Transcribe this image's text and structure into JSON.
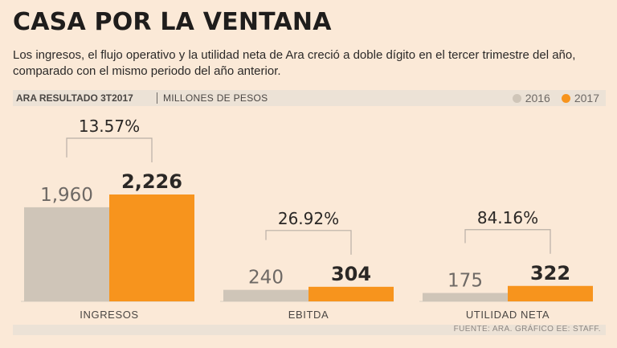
{
  "header": {
    "title": "CASA POR LA VENTANA",
    "subtitle": "Los ingresos, el flujo operativo y la utilidad neta de Ara creció a doble dígito en el tercer trimestre del año, comparado con el mismo periodo del año anterior."
  },
  "band": {
    "heading": "ARA RESULTADO 3T2017",
    "unit": "MILLONES DE PESOS"
  },
  "colors": {
    "series_2016": "#cfc5b8",
    "series_2017": "#f7941d",
    "background": "#fbe9d7"
  },
  "chart_data": {
    "type": "bar",
    "title": "ARA RESULTADO 3T2017",
    "ylabel": "MILLONES DE PESOS",
    "categories": [
      "INGRESOS",
      "EBITDA",
      "UTILIDAD NETA"
    ],
    "series": [
      {
        "name": "2016",
        "values": [
          1960,
          240,
          175
        ],
        "labels": [
          "1,960",
          "240",
          "175"
        ]
      },
      {
        "name": "2017",
        "values": [
          2226,
          304,
          322
        ],
        "labels": [
          "2,226",
          "304",
          "322"
        ]
      }
    ],
    "changes": [
      "13.57%",
      "26.92%",
      "84.16%"
    ],
    "legend": [
      "2016",
      "2017"
    ],
    "legend_position": "top-right"
  },
  "footer": {
    "source": "FUENTE: ARA. GRÁFICO EE: STAFF."
  }
}
